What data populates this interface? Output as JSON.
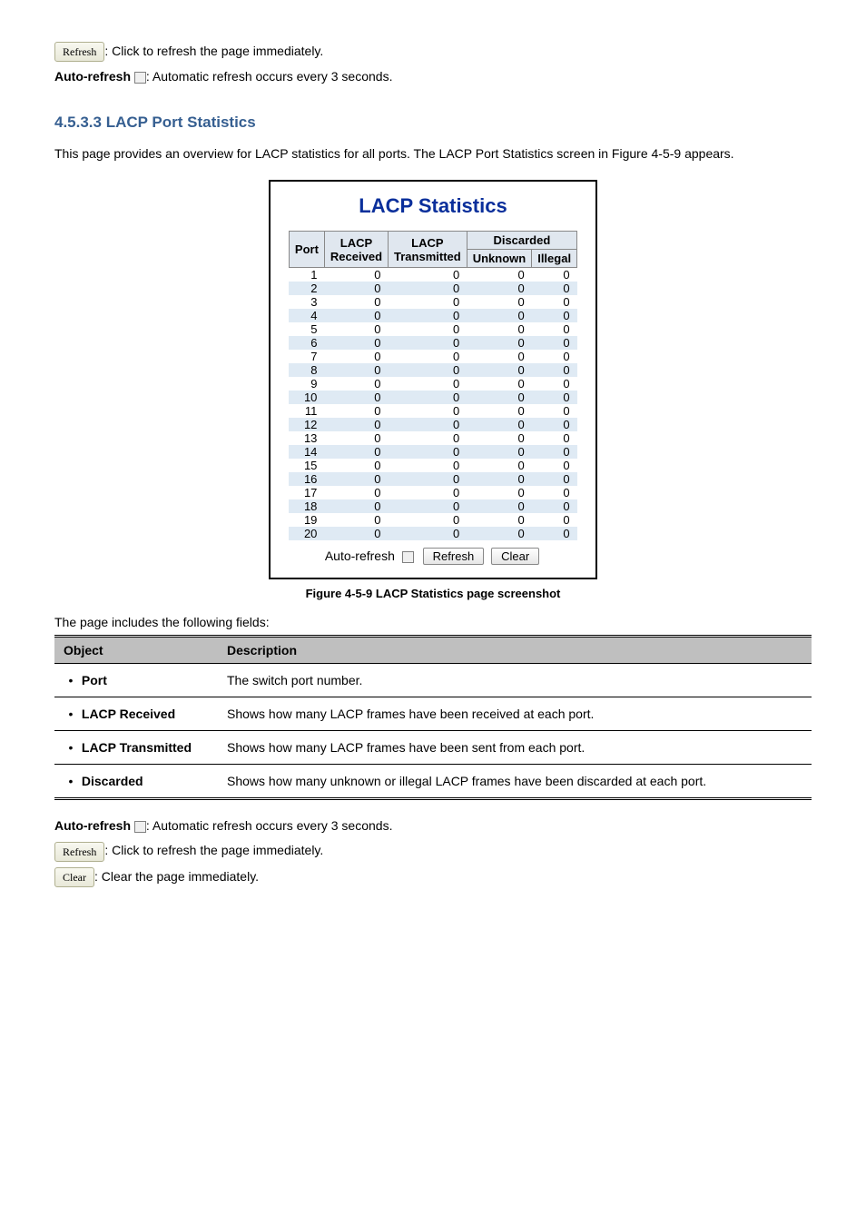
{
  "intro": {
    "refresh_button_label": "Refresh",
    "refresh_line": ": Click to refresh the page immediately.",
    "auto_refresh_label": "Auto-refresh",
    "auto_refresh_line": ": Automatic refresh occurs every 3 seconds."
  },
  "section": {
    "heading": "4.5.3.3 LACP Port Statistics",
    "body": "This page provides an overview for LACP statistics for all ports. The LACP Port Statistics screen in Figure 4-5-9 appears."
  },
  "figure": {
    "title": "LACP Statistics",
    "columns": {
      "port": "Port",
      "received": "LACP\nReceived",
      "transmitted": "LACP\nTransmitted",
      "discarded": "Discarded",
      "unknown": "Unknown",
      "illegal": "Illegal"
    },
    "rows": [
      {
        "port": "1",
        "rx": "0",
        "tx": "0",
        "unk": "0",
        "ill": "0"
      },
      {
        "port": "2",
        "rx": "0",
        "tx": "0",
        "unk": "0",
        "ill": "0"
      },
      {
        "port": "3",
        "rx": "0",
        "tx": "0",
        "unk": "0",
        "ill": "0"
      },
      {
        "port": "4",
        "rx": "0",
        "tx": "0",
        "unk": "0",
        "ill": "0"
      },
      {
        "port": "5",
        "rx": "0",
        "tx": "0",
        "unk": "0",
        "ill": "0"
      },
      {
        "port": "6",
        "rx": "0",
        "tx": "0",
        "unk": "0",
        "ill": "0"
      },
      {
        "port": "7",
        "rx": "0",
        "tx": "0",
        "unk": "0",
        "ill": "0"
      },
      {
        "port": "8",
        "rx": "0",
        "tx": "0",
        "unk": "0",
        "ill": "0"
      },
      {
        "port": "9",
        "rx": "0",
        "tx": "0",
        "unk": "0",
        "ill": "0"
      },
      {
        "port": "10",
        "rx": "0",
        "tx": "0",
        "unk": "0",
        "ill": "0"
      },
      {
        "port": "11",
        "rx": "0",
        "tx": "0",
        "unk": "0",
        "ill": "0"
      },
      {
        "port": "12",
        "rx": "0",
        "tx": "0",
        "unk": "0",
        "ill": "0"
      },
      {
        "port": "13",
        "rx": "0",
        "tx": "0",
        "unk": "0",
        "ill": "0"
      },
      {
        "port": "14",
        "rx": "0",
        "tx": "0",
        "unk": "0",
        "ill": "0"
      },
      {
        "port": "15",
        "rx": "0",
        "tx": "0",
        "unk": "0",
        "ill": "0"
      },
      {
        "port": "16",
        "rx": "0",
        "tx": "0",
        "unk": "0",
        "ill": "0"
      },
      {
        "port": "17",
        "rx": "0",
        "tx": "0",
        "unk": "0",
        "ill": "0"
      },
      {
        "port": "18",
        "rx": "0",
        "tx": "0",
        "unk": "0",
        "ill": "0"
      },
      {
        "port": "19",
        "rx": "0",
        "tx": "0",
        "unk": "0",
        "ill": "0"
      },
      {
        "port": "20",
        "rx": "0",
        "tx": "0",
        "unk": "0",
        "ill": "0"
      }
    ],
    "controls": {
      "auto_refresh": "Auto-refresh",
      "refresh": "Refresh",
      "clear": "Clear"
    },
    "caption_prefix": "Figure 4-5-9 ",
    "caption": "LACP Statistics page screenshot"
  },
  "includes_line": "The page includes the following fields:",
  "desc_table": {
    "head_object": "Object",
    "head_description": "Description",
    "rows": [
      {
        "obj": "Port",
        "desc": "The switch port number."
      },
      {
        "obj": "LACP Received",
        "desc": "Shows how many LACP frames have been received at each port."
      },
      {
        "obj": "LACP Transmitted",
        "desc": "Shows how many LACP frames have been sent from each port."
      },
      {
        "obj": "Discarded",
        "desc": "Shows how many unknown or illegal LACP frames have been discarded at each port."
      }
    ]
  },
  "outro": {
    "auto_refresh_label": "Auto-refresh",
    "auto_refresh_line": ": Automatic refresh occurs every 3 seconds.",
    "refresh_button_label": "Refresh",
    "refresh_line": ": Click to refresh the page immediately.",
    "clear_button_label": "Clear",
    "clear_line": ": Clear the page immediately."
  }
}
